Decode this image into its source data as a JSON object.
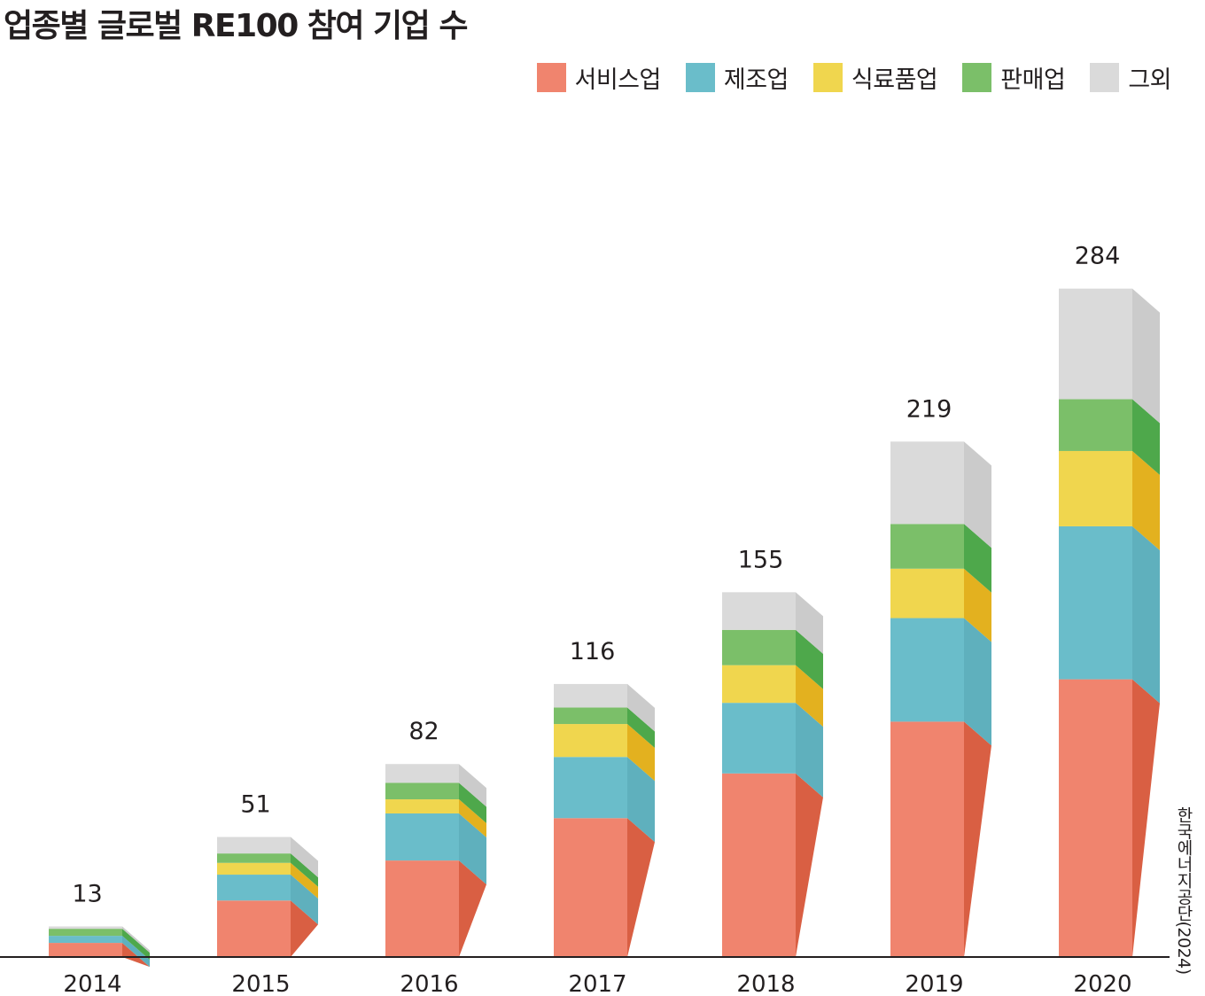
{
  "chart_data": {
    "type": "bar",
    "stacked": true,
    "style": "3d",
    "title": "업종별 글로벌 RE100 참여 기업 수",
    "categories": [
      "2014",
      "2015",
      "2016",
      "2017",
      "2018",
      "2019",
      "2020"
    ],
    "totals": [
      13,
      51,
      82,
      116,
      155,
      219,
      284
    ],
    "ylim": [
      0,
      300
    ],
    "grid": false,
    "legend_position": "top-right",
    "series": [
      {
        "name": "서비스업",
        "color": "#f0846e",
        "side_color": "#d95f43",
        "values": [
          6,
          24,
          41,
          59,
          78,
          100,
          118
        ]
      },
      {
        "name": "제조업",
        "color": "#6abdca",
        "side_color": "#5fb0bd",
        "values": [
          3,
          11,
          20,
          26,
          30,
          44,
          65
        ]
      },
      {
        "name": "식료품업",
        "color": "#f0d64e",
        "side_color": "#e3b11f",
        "values": [
          0,
          5,
          6,
          14,
          16,
          21,
          32
        ]
      },
      {
        "name": "판매업",
        "color": "#7bbf69",
        "side_color": "#4ea84b",
        "values": [
          3,
          4,
          7,
          7,
          15,
          19,
          22
        ]
      },
      {
        "name": "그외",
        "color": "#dadada",
        "side_color": "#cbcbcb",
        "values": [
          1,
          7,
          8,
          10,
          16,
          35,
          47
        ]
      }
    ],
    "source": "한국에너지공단(2024)"
  }
}
